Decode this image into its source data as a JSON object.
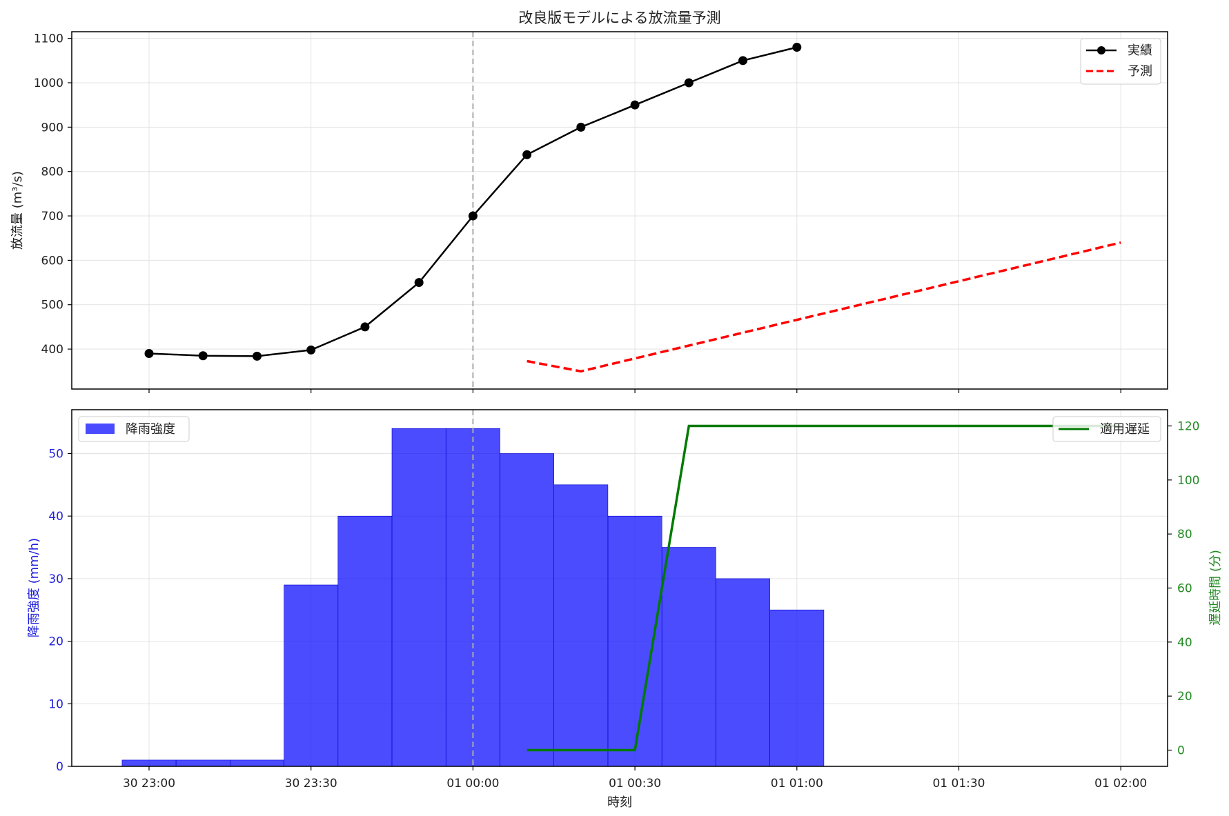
{
  "chart_data": [
    {
      "type": "line",
      "title": "改良版モデルによる放流量予測",
      "ylabel": "放流量 (m³/s)",
      "xlabel": "",
      "ylim": [
        310,
        1115
      ],
      "yticks": [
        400,
        500,
        600,
        700,
        800,
        900,
        1000,
        1100
      ],
      "grid": true,
      "legend": "top-right",
      "series": [
        {
          "name": "実績",
          "color": "#000000",
          "style": "solid-markers",
          "x": [
            "30 23:00",
            "30 23:10",
            "30 23:20",
            "30 23:30",
            "30 23:40",
            "30 23:50",
            "01 00:00",
            "01 00:10",
            "01 00:20",
            "01 00:30",
            "01 00:40",
            "01 00:50",
            "01 01:00"
          ],
          "values": [
            390,
            385,
            384,
            398,
            450,
            550,
            700,
            838,
            900,
            950,
            1000,
            1050,
            1080
          ]
        },
        {
          "name": "予測",
          "color": "#ff0000",
          "style": "dashed",
          "x": [
            "01 00:10",
            "01 00:20",
            "01 02:00"
          ],
          "values": [
            373,
            350,
            640
          ]
        }
      ],
      "vline": "01 00:00"
    },
    {
      "type": "bar",
      "xlabel": "時刻",
      "ylabel": "降雨強度 (mm/h)",
      "ylabel_right": "遅延時間 (分)",
      "ylim": [
        0,
        57
      ],
      "yticks": [
        0,
        10,
        20,
        30,
        40,
        50
      ],
      "ylim_right": [
        -6,
        126
      ],
      "yticks_right": [
        0,
        20,
        40,
        60,
        80,
        100,
        120
      ],
      "grid": true,
      "xticks": [
        "30 23:00",
        "30 23:30",
        "01 00:00",
        "01 00:30",
        "01 01:00",
        "01 01:30",
        "01 02:00"
      ],
      "bars": {
        "name": "降雨強度",
        "color": "#0000ff",
        "legend": "top-left",
        "x": [
          "30 23:00",
          "30 23:10",
          "30 23:20",
          "30 23:30",
          "30 23:40",
          "30 23:50",
          "01 00:00",
          "01 00:10",
          "01 00:20",
          "01 00:30",
          "01 00:40",
          "01 00:50",
          "01 01:00"
        ],
        "values": [
          1,
          1,
          1,
          29,
          40,
          54,
          54,
          50,
          45,
          40,
          35,
          30,
          25
        ]
      },
      "line": {
        "name": "適用遅延",
        "color": "#007a00",
        "legend": "top-right",
        "x": [
          "01 00:10",
          "01 00:30",
          "01 00:40",
          "01 02:00"
        ],
        "values": [
          0,
          0,
          120,
          120
        ]
      },
      "vline": "01 00:00"
    }
  ]
}
